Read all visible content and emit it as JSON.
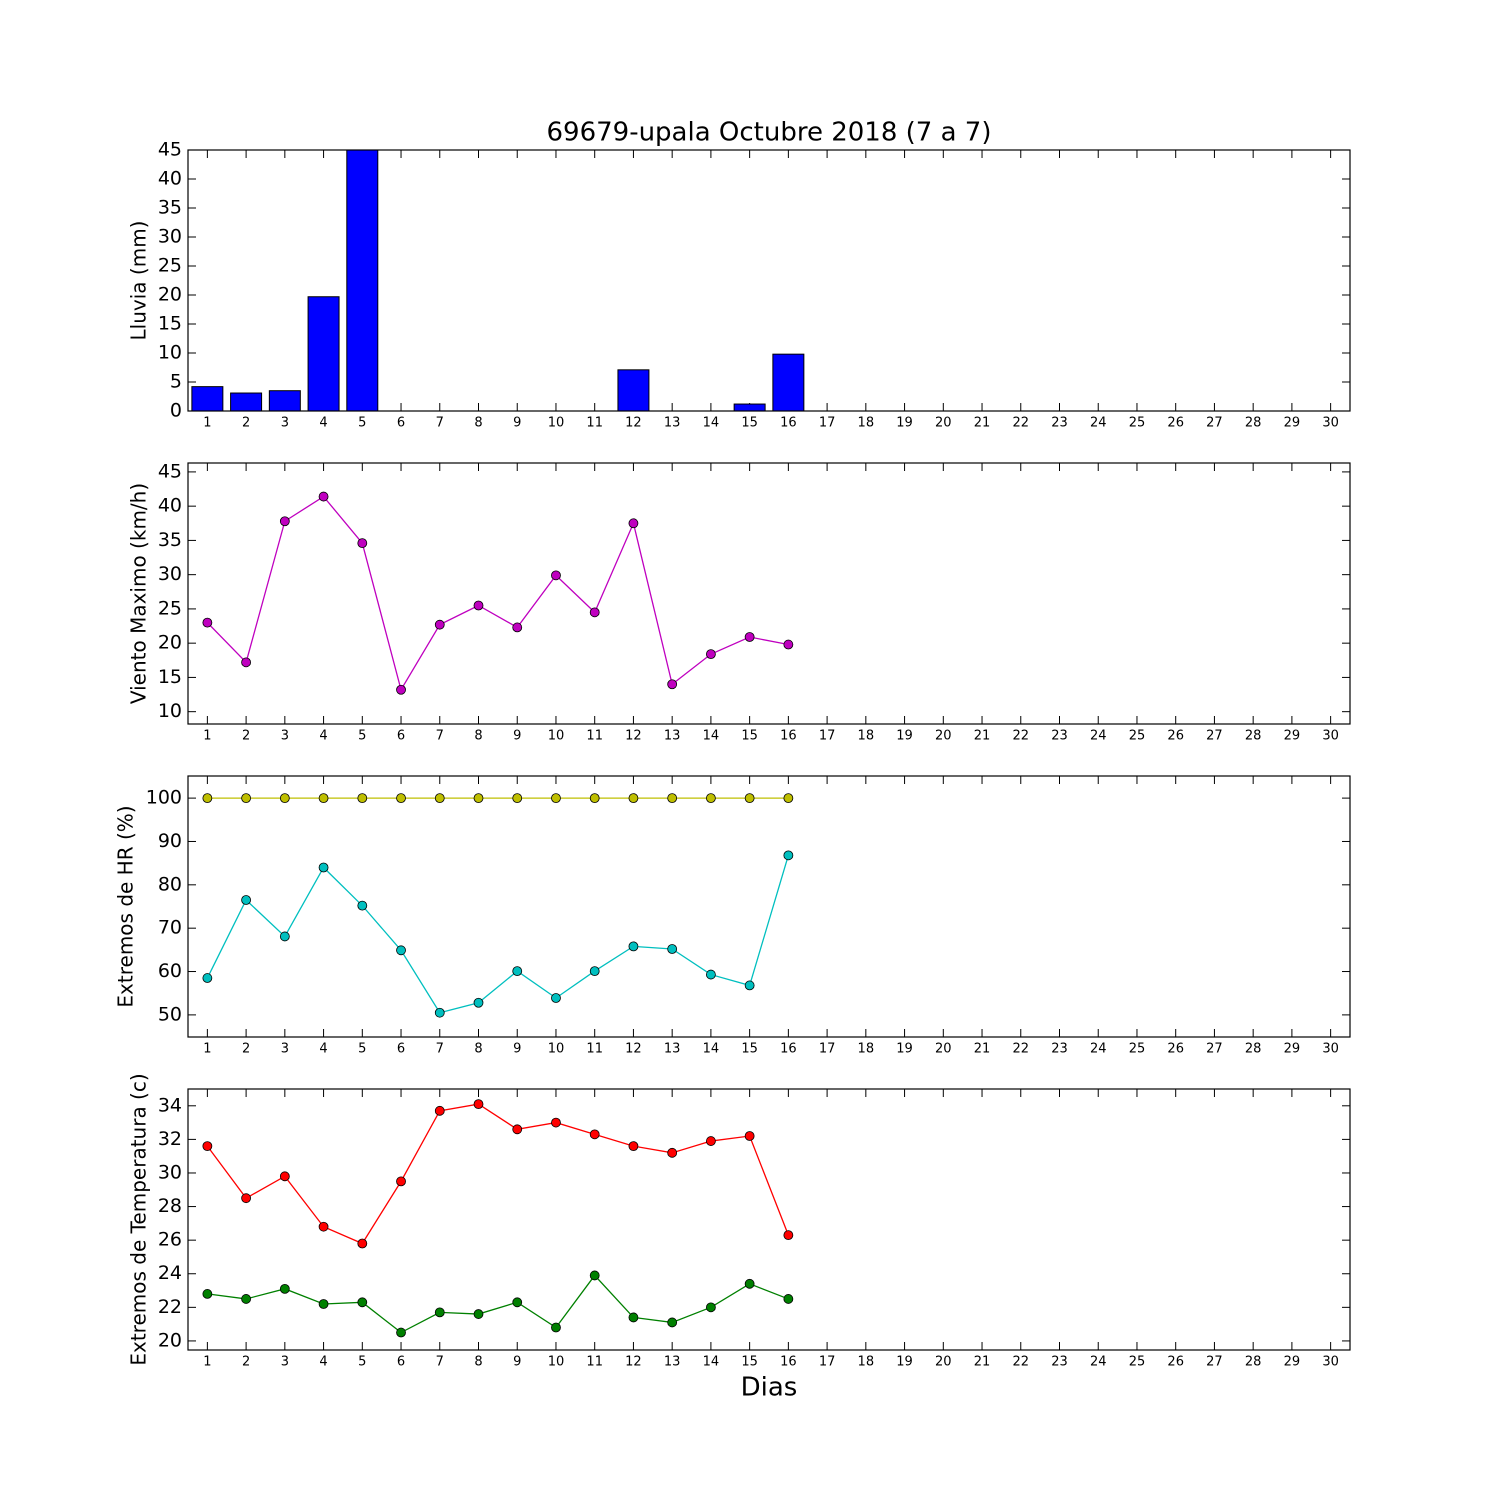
{
  "chart_data": [
    {
      "type": "bar",
      "title": "69679-upala Octubre 2018  (7 a 7)",
      "y_label": "Lluvia (mm)",
      "x": [
        1,
        2,
        3,
        4,
        5,
        6,
        7,
        8,
        9,
        10,
        11,
        12,
        13,
        14,
        15,
        16
      ],
      "series": [
        {
          "color": "#0000ff",
          "values": [
            4.2,
            3.1,
            3.5,
            19.7,
            45,
            0,
            0,
            0,
            0,
            0,
            0,
            7.1,
            0,
            0,
            1.2,
            9.8
          ]
        }
      ],
      "xlim": [
        0.5,
        30.5
      ],
      "xticks": [
        1,
        2,
        3,
        4,
        5,
        6,
        7,
        8,
        9,
        10,
        11,
        12,
        13,
        14,
        15,
        16,
        17,
        18,
        19,
        20,
        21,
        22,
        23,
        24,
        25,
        26,
        27,
        28,
        29,
        30
      ],
      "ylim": [
        0,
        45
      ],
      "yticks": [
        0,
        5,
        10,
        15,
        20,
        25,
        30,
        35,
        40,
        45
      ]
    },
    {
      "type": "line",
      "y_label": "Viento Maximo (km/h)",
      "x": [
        1,
        2,
        3,
        4,
        5,
        6,
        7,
        8,
        9,
        10,
        11,
        12,
        13,
        14,
        15,
        16
      ],
      "series": [
        {
          "color": "#bf00bf",
          "values": [
            23.0,
            17.2,
            37.8,
            41.4,
            34.6,
            13.2,
            22.7,
            25.5,
            22.3,
            29.9,
            24.5,
            37.5,
            14.0,
            18.4,
            20.9,
            19.8
          ]
        }
      ],
      "xlim": [
        0.5,
        30.5
      ],
      "xticks": [
        1,
        2,
        3,
        4,
        5,
        6,
        7,
        8,
        9,
        10,
        11,
        12,
        13,
        14,
        15,
        16,
        17,
        18,
        19,
        20,
        21,
        22,
        23,
        24,
        25,
        26,
        27,
        28,
        29,
        30
      ],
      "ylim": [
        8.2,
        46.3
      ],
      "yticks": [
        10,
        15,
        20,
        25,
        30,
        35,
        40,
        45
      ]
    },
    {
      "type": "line",
      "y_label": "Extremos de HR (%)",
      "x": [
        1,
        2,
        3,
        4,
        5,
        6,
        7,
        8,
        9,
        10,
        11,
        12,
        13,
        14,
        15,
        16
      ],
      "series": [
        {
          "color": "#bfbf00",
          "values": [
            100,
            100,
            100,
            100,
            100,
            100,
            100,
            100,
            100,
            100,
            100,
            100,
            100,
            100,
            100,
            100
          ]
        },
        {
          "color": "#00bfbf",
          "values": [
            58.5,
            76.5,
            68.1,
            84.0,
            75.2,
            64.9,
            50.5,
            52.8,
            60.1,
            53.9,
            60.1,
            65.8,
            65.2,
            59.3,
            56.8,
            86.8
          ]
        }
      ],
      "xlim": [
        0.5,
        30.5
      ],
      "xticks": [
        1,
        2,
        3,
        4,
        5,
        6,
        7,
        8,
        9,
        10,
        11,
        12,
        13,
        14,
        15,
        16,
        17,
        18,
        19,
        20,
        21,
        22,
        23,
        24,
        25,
        26,
        27,
        28,
        29,
        30
      ],
      "ylim": [
        44.9,
        105.1
      ],
      "yticks": [
        50,
        60,
        70,
        80,
        90,
        100
      ]
    },
    {
      "type": "line",
      "y_label": "Extremos de Temperatura (c)",
      "x_label": "Dias",
      "x": [
        1,
        2,
        3,
        4,
        5,
        6,
        7,
        8,
        9,
        10,
        11,
        12,
        13,
        14,
        15,
        16
      ],
      "series": [
        {
          "color": "#ff0000",
          "values": [
            31.6,
            28.5,
            29.8,
            26.8,
            25.8,
            29.5,
            33.7,
            34.1,
            32.6,
            33.0,
            32.3,
            31.6,
            31.2,
            31.9,
            32.2,
            26.3
          ]
        },
        {
          "color": "#008000",
          "values": [
            22.8,
            22.5,
            23.1,
            22.2,
            22.3,
            20.5,
            21.7,
            21.6,
            22.3,
            20.8,
            23.9,
            21.4,
            21.1,
            22.0,
            23.4,
            22.5
          ]
        }
      ],
      "xlim": [
        0.5,
        30.5
      ],
      "xticks": [
        1,
        2,
        3,
        4,
        5,
        6,
        7,
        8,
        9,
        10,
        11,
        12,
        13,
        14,
        15,
        16,
        17,
        18,
        19,
        20,
        21,
        22,
        23,
        24,
        25,
        26,
        27,
        28,
        29,
        30
      ],
      "ylim": [
        19.46,
        35.0
      ],
      "yticks": [
        20,
        22,
        24,
        26,
        28,
        30,
        32,
        34
      ]
    }
  ]
}
